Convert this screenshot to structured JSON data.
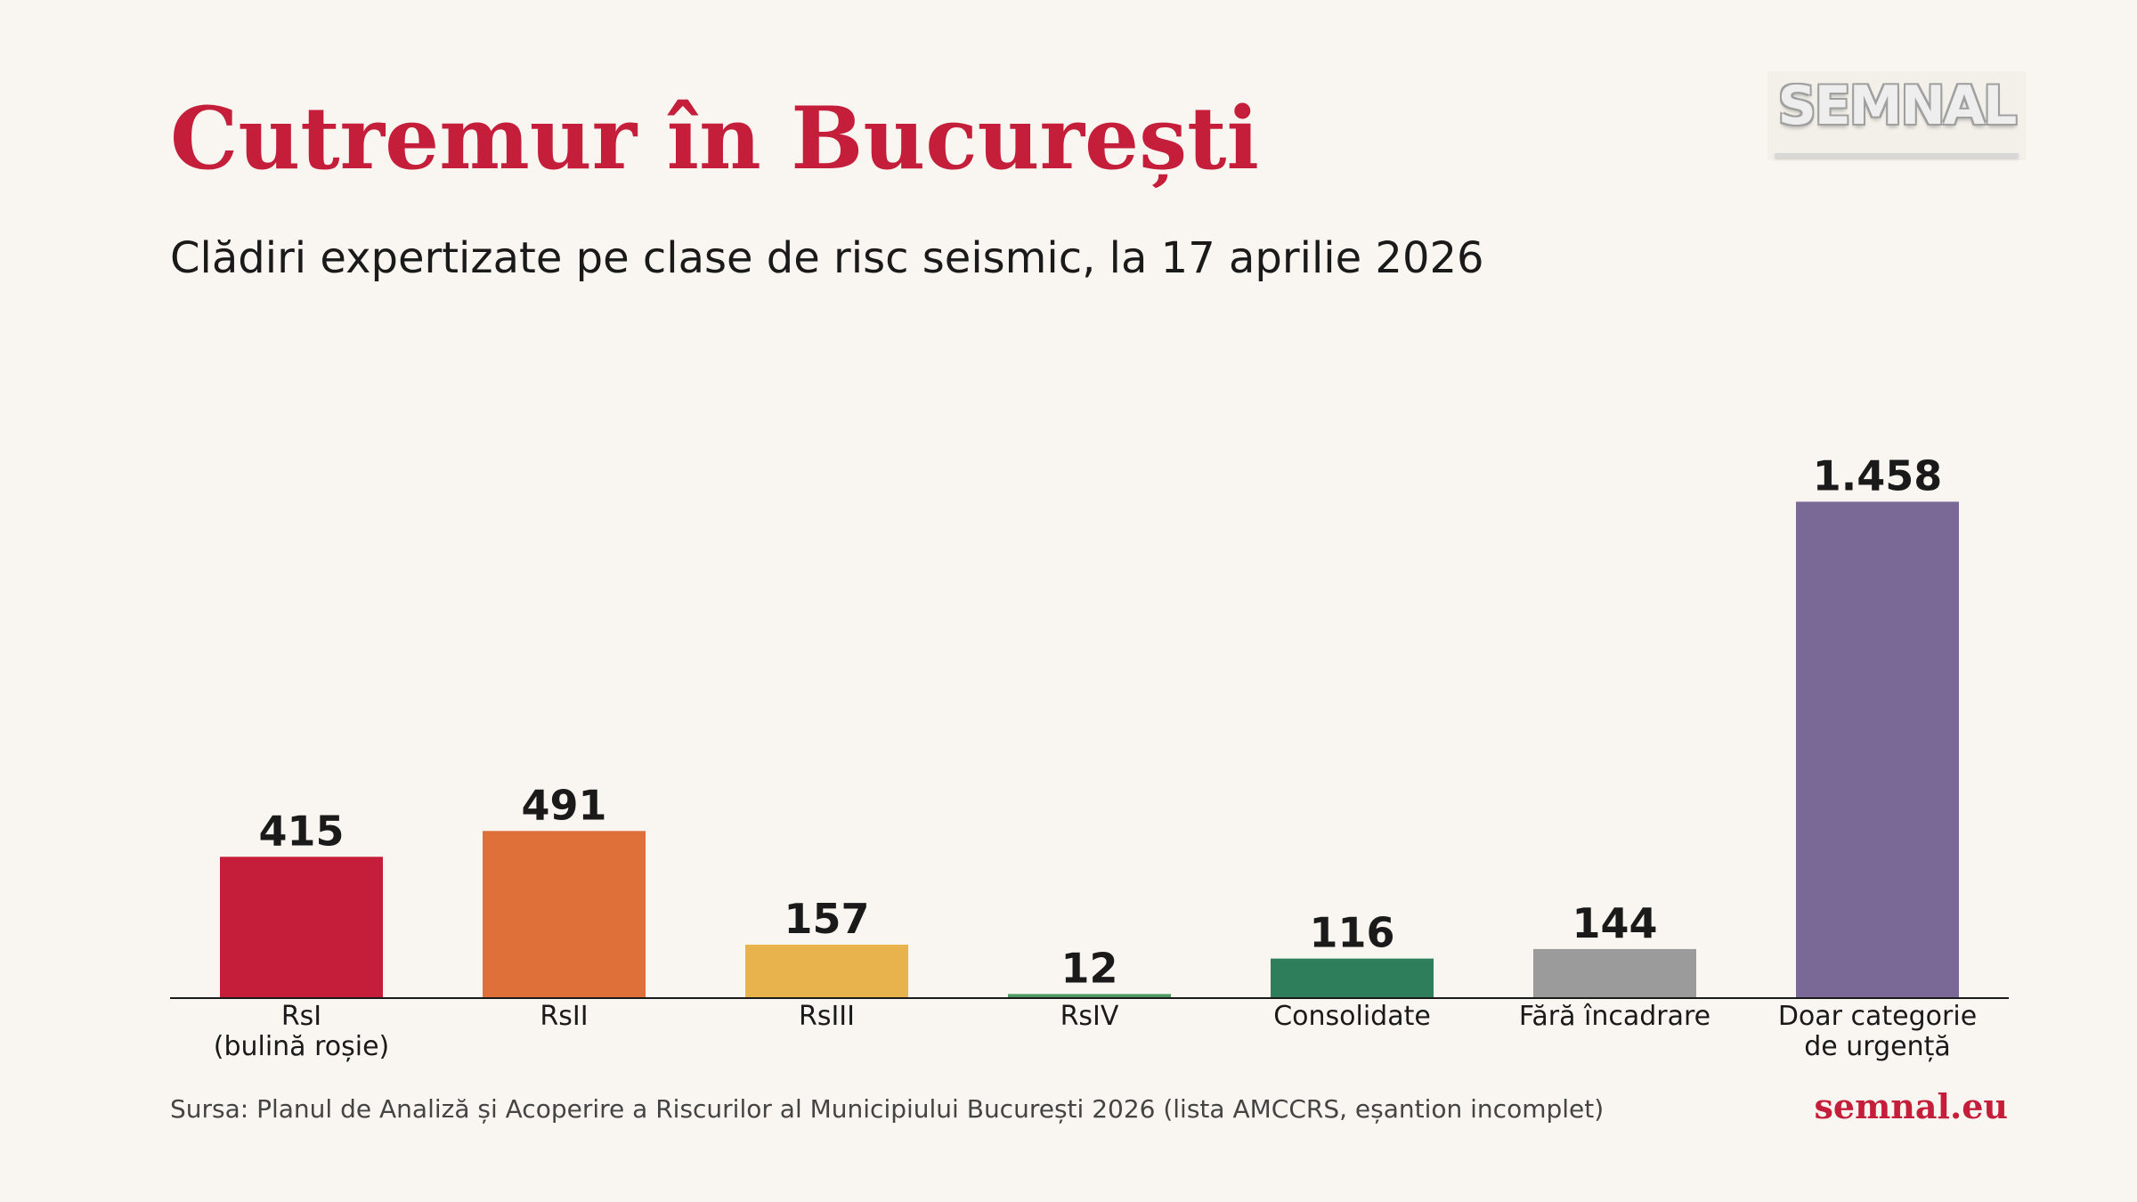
{
  "header": {
    "title": "Cutremur în București",
    "subtitle": "Clădiri expertizate pe clase de risc seismic, la 17 aprilie 2026",
    "logo_text": "SEMNAL"
  },
  "footer": {
    "source": "Sursa: Planul de Analiză și Acoperire a Riscurilor al Municipiului București 2026 (lista AMCCRS, eșantion incomplet)",
    "site": "semnal.eu"
  },
  "chart_data": {
    "type": "bar",
    "title": "Cutremur în București",
    "subtitle": "Clădiri expertizate pe clase de risc seismic, la 17 aprilie 2026",
    "xlabel": "",
    "ylabel": "",
    "grid": false,
    "legend": "none",
    "categories": [
      [
        "RsI",
        "(bulină roșie)"
      ],
      [
        "RsII"
      ],
      [
        "RsIII"
      ],
      [
        "RsIV"
      ],
      [
        "Consolidate"
      ],
      [
        "Fără încadrare"
      ],
      [
        "Doar categorie",
        "de urgență"
      ]
    ],
    "values": [
      415,
      491,
      157,
      12,
      116,
      144,
      1458
    ],
    "value_labels": [
      "415",
      "491",
      "157",
      "12",
      "116",
      "144",
      "1.458"
    ],
    "colors": [
      "#c41e3a",
      "#e0703a",
      "#e8b34c",
      "#4e9a62",
      "#2e7d5b",
      "#9b9b9b",
      "#7a6896"
    ],
    "ylim": [
      0,
      1530
    ]
  }
}
